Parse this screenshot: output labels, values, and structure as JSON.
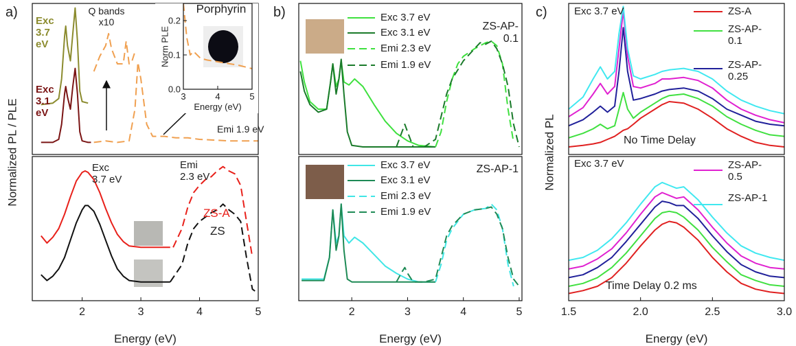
{
  "chart_data": [
    {
      "type": "line",
      "panel_label": "a)",
      "ylabel": "Normalized PL / PLE",
      "xlim": [
        1.15,
        5.0
      ],
      "ylim": [
        0,
        1
      ],
      "annotations": [
        "Exc 3.7 eV",
        "Exc 3.1 eV",
        "Q bands x10",
        "Emi 1.9 eV"
      ],
      "series": [
        {
          "color": "#8b8b2e",
          "x": [
            1.3,
            1.5,
            1.6,
            1.65,
            1.7,
            1.72,
            1.75,
            1.8,
            1.84,
            1.88,
            1.92,
            1.96,
            2.0,
            2.1
          ],
          "values": [
            0.33,
            0.34,
            0.37,
            0.5,
            0.78,
            0.85,
            0.72,
            0.62,
            0.8,
            0.97,
            0.75,
            0.42,
            0.35,
            0.34
          ]
        },
        {
          "color": "#7a1414",
          "x": [
            1.3,
            1.5,
            1.6,
            1.65,
            1.7,
            1.72,
            1.75,
            1.8,
            1.84,
            1.88,
            1.92,
            1.96,
            2.0,
            2.1,
            2.15
          ],
          "values": [
            0.08,
            0.08,
            0.1,
            0.2,
            0.4,
            0.45,
            0.38,
            0.3,
            0.45,
            0.57,
            0.4,
            0.15,
            0.09,
            0.08,
            0.08
          ]
        },
        {
          "color": "#f0a050",
          "dash": true,
          "x": [
            2.2,
            2.4,
            2.6,
            2.8,
            2.9,
            2.95,
            3.0,
            3.1,
            3.2,
            3.4,
            3.6,
            3.8,
            4.0,
            4.5,
            5.0
          ],
          "values": [
            0.08,
            0.09,
            0.08,
            0.09,
            0.3,
            0.61,
            0.5,
            0.2,
            0.12,
            0.12,
            0.11,
            0.11,
            0.1,
            0.09,
            0.09
          ]
        },
        {
          "color": "#f0a050",
          "dash": true,
          "x": [
            2.2,
            2.3,
            2.4,
            2.45,
            2.5,
            2.6,
            2.7,
            2.75,
            2.8,
            2.85,
            2.9
          ],
          "values": [
            0.55,
            0.65,
            0.72,
            0.8,
            0.7,
            0.6,
            0.6,
            0.75,
            0.6,
            0.62,
            0.68
          ]
        }
      ]
    },
    {
      "type": "line",
      "title": "Porphyrin",
      "xlabel": "Energy (eV)",
      "ylabel": "Norm PLE",
      "xlim": [
        3,
        5
      ],
      "ylim": [
        0,
        0.25
      ],
      "xticks": [
        3,
        4,
        5
      ],
      "yticks": [
        {
          "value": 0,
          "label": "0.0"
        },
        {
          "value": 0.1,
          "label": "0.1"
        },
        {
          "value": 0.2,
          "label": "0.2"
        }
      ],
      "series": [
        {
          "color": "#f0a050",
          "dash": true,
          "x": [
            3.0,
            3.1,
            3.2,
            3.3,
            3.5,
            3.7,
            4.0,
            4.3,
            4.6,
            5.0
          ],
          "values": [
            0.25,
            0.15,
            0.1,
            0.11,
            0.09,
            0.085,
            0.08,
            0.075,
            0.07,
            0.06
          ]
        }
      ]
    },
    {
      "type": "line",
      "xlabel": "Energy (eV)",
      "xlim": [
        1.15,
        5.0
      ],
      "ylim": [
        0,
        1
      ],
      "xticks": [
        2,
        3,
        4,
        5
      ],
      "annotations": [
        "Exc 3.7 eV",
        "Emi 2.3 eV",
        "ZS-A",
        "ZS"
      ],
      "series": [
        {
          "color": "#e8201a",
          "x": [
            1.3,
            1.4,
            1.5,
            1.6,
            1.7,
            1.8,
            1.9,
            2.0,
            2.05,
            2.1,
            2.2,
            2.3,
            2.4,
            2.5,
            2.6,
            2.7,
            2.8,
            3.0,
            3.2,
            3.5
          ],
          "values": [
            0.45,
            0.4,
            0.44,
            0.5,
            0.6,
            0.72,
            0.83,
            0.89,
            0.9,
            0.89,
            0.84,
            0.75,
            0.64,
            0.54,
            0.46,
            0.41,
            0.38,
            0.37,
            0.37,
            0.37
          ]
        },
        {
          "color": "#e8201a",
          "dash": true,
          "x": [
            3.55,
            3.7,
            3.8,
            3.9,
            4.0,
            4.1,
            4.2,
            4.3,
            4.4,
            4.5,
            4.6,
            4.7,
            4.8,
            4.9
          ],
          "values": [
            0.37,
            0.5,
            0.65,
            0.75,
            0.8,
            0.84,
            0.86,
            0.9,
            0.93,
            0.9,
            0.88,
            0.8,
            0.55,
            0.3
          ]
        },
        {
          "color": "#111111",
          "x": [
            1.3,
            1.4,
            1.5,
            1.6,
            1.7,
            1.8,
            1.9,
            2.0,
            2.05,
            2.1,
            2.2,
            2.3,
            2.4,
            2.5,
            2.6,
            2.7,
            2.8,
            3.0,
            3.2,
            3.5
          ],
          "values": [
            0.18,
            0.14,
            0.17,
            0.22,
            0.3,
            0.42,
            0.54,
            0.63,
            0.66,
            0.66,
            0.62,
            0.53,
            0.42,
            0.31,
            0.22,
            0.17,
            0.14,
            0.13,
            0.13,
            0.13
          ]
        },
        {
          "color": "#111111",
          "dash": true,
          "x": [
            3.5,
            3.7,
            3.8,
            3.9,
            4.0,
            4.1,
            4.2,
            4.3,
            4.4,
            4.5,
            4.6,
            4.7,
            4.8,
            4.9,
            5.0
          ],
          "values": [
            0.13,
            0.25,
            0.4,
            0.5,
            0.55,
            0.58,
            0.61,
            0.63,
            0.67,
            0.63,
            0.6,
            0.55,
            0.3,
            0.08,
            0.05
          ]
        }
      ]
    },
    {
      "type": "line",
      "panel_label": "b)",
      "xlim": [
        1.05,
        5.05
      ],
      "ylim": [
        0,
        1
      ],
      "annotations": [
        "ZS-AP-0.1"
      ],
      "series": [
        {
          "name": "Exc 3.7 eV",
          "color": "#3ee03e",
          "x": [
            1.08,
            1.15,
            1.25,
            1.4,
            1.55,
            1.62,
            1.66,
            1.72,
            1.77,
            1.81,
            1.86,
            1.95,
            2.05,
            2.2,
            2.4,
            2.6,
            2.8,
            3.0,
            3.2,
            3.5
          ],
          "values": [
            0.62,
            0.48,
            0.35,
            0.3,
            0.3,
            0.48,
            0.6,
            0.45,
            0.5,
            0.62,
            0.48,
            0.46,
            0.5,
            0.45,
            0.33,
            0.22,
            0.14,
            0.09,
            0.06,
            0.05
          ]
        },
        {
          "name": "Exc 3.1 eV",
          "color": "#1a7a2a",
          "x": [
            1.08,
            1.15,
            1.25,
            1.4,
            1.55,
            1.62,
            1.66,
            1.72,
            1.77,
            1.81,
            1.86,
            1.92,
            2.0,
            2.2,
            2.6,
            3.0,
            3.5
          ],
          "values": [
            0.55,
            0.42,
            0.33,
            0.28,
            0.3,
            0.48,
            0.6,
            0.4,
            0.5,
            0.63,
            0.4,
            0.15,
            0.06,
            0.05,
            0.05,
            0.05,
            0.05
          ]
        },
        {
          "name": "Emi 2.3 eV",
          "color": "#3ee03e",
          "dash": true,
          "x": [
            3.5,
            3.6,
            3.7,
            3.8,
            3.9,
            4.0,
            4.2,
            4.4,
            4.5,
            4.6,
            4.7,
            4.8,
            4.9
          ],
          "values": [
            0.05,
            0.15,
            0.35,
            0.5,
            0.6,
            0.65,
            0.7,
            0.74,
            0.75,
            0.72,
            0.6,
            0.3,
            0.08
          ]
        },
        {
          "name": "Emi 1.9 eV",
          "color": "#1a7a2a",
          "dash": true,
          "x": [
            2.8,
            2.9,
            2.95,
            3.0,
            3.1,
            3.3,
            3.5,
            3.6,
            3.7,
            3.8,
            4.0,
            4.2,
            4.3,
            4.4,
            4.5,
            4.6,
            4.7,
            4.8,
            4.9,
            5.0
          ],
          "values": [
            0.05,
            0.15,
            0.2,
            0.15,
            0.05,
            0.05,
            0.1,
            0.25,
            0.4,
            0.5,
            0.62,
            0.7,
            0.74,
            0.73,
            0.75,
            0.7,
            0.6,
            0.45,
            0.2,
            0.05
          ]
        }
      ]
    },
    {
      "type": "line",
      "xlabel": "Energy (eV)",
      "xlim": [
        1.05,
        5.05
      ],
      "ylim": [
        0,
        1
      ],
      "xticks": [
        2,
        3,
        4,
        5
      ],
      "annotations": [
        "ZS-AP-1"
      ],
      "series": [
        {
          "name": "Exc 3.7 eV",
          "color": "#40e6e6",
          "x": [
            1.1,
            1.3,
            1.5,
            1.6,
            1.66,
            1.72,
            1.77,
            1.81,
            1.86,
            1.95,
            2.05,
            2.2,
            2.4,
            2.6,
            2.8,
            3.0,
            3.2,
            3.5
          ],
          "values": [
            0.15,
            0.15,
            0.15,
            0.3,
            0.63,
            0.4,
            0.45,
            0.67,
            0.45,
            0.4,
            0.44,
            0.4,
            0.32,
            0.24,
            0.19,
            0.15,
            0.13,
            0.13
          ]
        },
        {
          "name": "Exc 3.1 eV",
          "color": "#1e8a55",
          "x": [
            1.1,
            1.3,
            1.5,
            1.6,
            1.66,
            1.72,
            1.77,
            1.81,
            1.86,
            1.92,
            2.0,
            2.2,
            2.6,
            3.0,
            3.5
          ],
          "values": [
            0.14,
            0.14,
            0.14,
            0.3,
            0.63,
            0.35,
            0.45,
            0.67,
            0.35,
            0.15,
            0.13,
            0.13,
            0.13,
            0.13,
            0.13
          ]
        },
        {
          "name": "Emi 2.3 eV",
          "color": "#40e6e6",
          "dash": true,
          "x": [
            3.5,
            3.6,
            3.7,
            3.8,
            3.9,
            4.0,
            4.2,
            4.4,
            4.5,
            4.6,
            4.7,
            4.8,
            4.9
          ],
          "values": [
            0.13,
            0.25,
            0.42,
            0.5,
            0.55,
            0.6,
            0.63,
            0.64,
            0.67,
            0.63,
            0.5,
            0.25,
            0.1
          ]
        },
        {
          "name": "Emi 1.9 eV",
          "color": "#1e8a55",
          "dash": true,
          "x": [
            2.8,
            2.9,
            2.95,
            3.0,
            3.1,
            3.3,
            3.5,
            3.6,
            3.7,
            3.8,
            4.0,
            4.2,
            4.4,
            4.5,
            4.6,
            4.7,
            4.8,
            4.9,
            5.0
          ],
          "values": [
            0.13,
            0.2,
            0.23,
            0.19,
            0.13,
            0.13,
            0.15,
            0.3,
            0.45,
            0.52,
            0.6,
            0.63,
            0.64,
            0.65,
            0.6,
            0.5,
            0.3,
            0.15,
            0.1
          ]
        }
      ]
    },
    {
      "type": "line",
      "panel_label": "c)",
      "ylabel": "Normalized PL",
      "xlim": [
        1.5,
        3.0
      ],
      "ylim": [
        0,
        1
      ],
      "annotations": [
        "Exc 3.7 eV",
        "No Time Delay"
      ],
      "x": [
        1.5,
        1.6,
        1.67,
        1.72,
        1.77,
        1.82,
        1.85,
        1.88,
        1.91,
        1.95,
        2.0,
        2.1,
        2.15,
        2.2,
        2.3,
        2.4,
        2.5,
        2.6,
        2.7,
        2.8,
        2.9,
        3.0
      ],
      "series": [
        {
          "name": "ZS-A",
          "color": "#e02020",
          "values": [
            0.05,
            0.06,
            0.07,
            0.08,
            0.1,
            0.12,
            0.14,
            0.16,
            0.17,
            0.2,
            0.24,
            0.3,
            0.33,
            0.35,
            0.34,
            0.3,
            0.24,
            0.17,
            0.12,
            0.08,
            0.06,
            0.05
          ]
        },
        {
          "name": "ZS-AP-0.1",
          "color": "#40e040",
          "values": [
            0.11,
            0.14,
            0.17,
            0.2,
            0.17,
            0.19,
            0.3,
            0.41,
            0.3,
            0.24,
            0.28,
            0.34,
            0.37,
            0.39,
            0.4,
            0.37,
            0.32,
            0.25,
            0.2,
            0.16,
            0.13,
            0.12
          ]
        },
        {
          "name": "ZS-AP-0.25",
          "color": "#20209a",
          "values": [
            0.19,
            0.23,
            0.28,
            0.32,
            0.28,
            0.32,
            0.55,
            0.84,
            0.55,
            0.36,
            0.37,
            0.4,
            0.42,
            0.43,
            0.44,
            0.42,
            0.37,
            0.3,
            0.26,
            0.22,
            0.2,
            0.19
          ]
        },
        {
          "color": "#e020d0",
          "values": [
            0.25,
            0.31,
            0.4,
            0.47,
            0.4,
            0.45,
            0.7,
            0.95,
            0.65,
            0.45,
            0.44,
            0.47,
            0.5,
            0.5,
            0.51,
            0.49,
            0.44,
            0.36,
            0.3,
            0.26,
            0.23,
            0.21
          ]
        },
        {
          "color": "#40e8f0",
          "values": [
            0.3,
            0.38,
            0.5,
            0.58,
            0.5,
            0.55,
            0.8,
            0.98,
            0.7,
            0.52,
            0.5,
            0.53,
            0.55,
            0.56,
            0.57,
            0.55,
            0.5,
            0.42,
            0.36,
            0.32,
            0.29,
            0.27
          ]
        }
      ]
    },
    {
      "type": "line",
      "xlabel": "Energy (eV)",
      "xlim": [
        1.5,
        3.0
      ],
      "ylim": [
        0,
        1
      ],
      "xticks": [
        1.5,
        {
          "value": 2,
          "label": "2.0"
        },
        2.5,
        {
          "value": 3,
          "label": "3.0"
        }
      ],
      "annotations": [
        "Exc 3.7 eV",
        "Time Delay 0.2 ms"
      ],
      "x": [
        1.5,
        1.6,
        1.7,
        1.8,
        1.9,
        2.0,
        2.1,
        2.15,
        2.2,
        2.25,
        2.3,
        2.4,
        2.5,
        2.6,
        2.7,
        2.8,
        2.9,
        3.0
      ],
      "series": [
        {
          "color": "#e02020",
          "values": [
            0.05,
            0.07,
            0.1,
            0.16,
            0.26,
            0.38,
            0.49,
            0.53,
            0.55,
            0.54,
            0.51,
            0.42,
            0.3,
            0.2,
            0.12,
            0.08,
            0.06,
            0.05
          ]
        },
        {
          "color": "#40e040",
          "values": [
            0.1,
            0.12,
            0.16,
            0.23,
            0.33,
            0.45,
            0.57,
            0.61,
            0.62,
            0.61,
            0.58,
            0.49,
            0.37,
            0.27,
            0.18,
            0.14,
            0.11,
            0.1
          ]
        },
        {
          "color": "#20209a",
          "values": [
            0.16,
            0.18,
            0.23,
            0.3,
            0.41,
            0.53,
            0.65,
            0.69,
            0.68,
            0.66,
            0.66,
            0.57,
            0.45,
            0.34,
            0.25,
            0.2,
            0.17,
            0.16
          ]
        },
        {
          "name": "ZS-AP-0.5",
          "color": "#e020d0",
          "values": [
            0.22,
            0.24,
            0.29,
            0.36,
            0.47,
            0.6,
            0.72,
            0.75,
            0.73,
            0.71,
            0.72,
            0.63,
            0.51,
            0.4,
            0.31,
            0.26,
            0.23,
            0.22
          ]
        },
        {
          "name": "ZS-AP-1",
          "color": "#40e8f0",
          "values": [
            0.28,
            0.3,
            0.35,
            0.43,
            0.54,
            0.67,
            0.79,
            0.82,
            0.8,
            0.78,
            0.79,
            0.7,
            0.58,
            0.47,
            0.38,
            0.33,
            0.3,
            0.28
          ]
        }
      ]
    }
  ]
}
